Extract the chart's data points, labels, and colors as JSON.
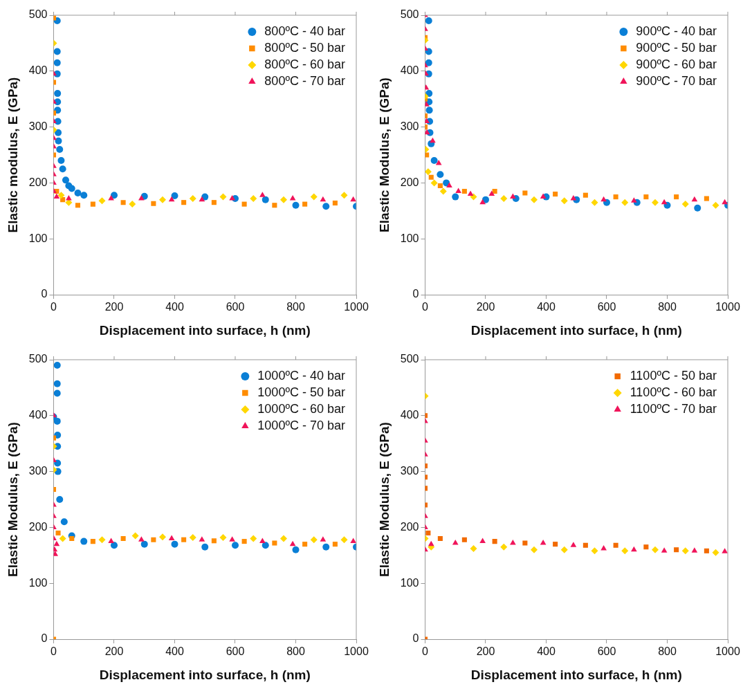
{
  "chart_data": [
    {
      "type": "scatter",
      "xlabel": "Displacement into surface, h (nm)",
      "ylabel": "Elastic modulus, E (GPa)",
      "xlim": [
        0,
        1000
      ],
      "ylim": [
        0,
        500
      ],
      "xticks": [
        0,
        200,
        400,
        600,
        800,
        1000
      ],
      "yticks": [
        0,
        100,
        200,
        300,
        400,
        500
      ],
      "legend": "top right",
      "series": [
        {
          "name": "800ºC - 40 bar",
          "color": "#0a7fd6",
          "marker": "circle",
          "x": [
            12,
            12,
            12,
            12,
            13,
            13,
            13,
            14,
            15,
            16,
            20,
            25,
            30,
            40,
            50,
            60,
            80,
            100,
            200,
            300,
            400,
            500,
            600,
            700,
            800,
            900,
            1000
          ],
          "values": [
            490,
            435,
            415,
            395,
            360,
            345,
            330,
            310,
            290,
            275,
            260,
            240,
            225,
            205,
            195,
            190,
            182,
            178,
            178,
            176,
            177,
            175,
            172,
            170,
            160,
            158,
            158
          ]
        },
        {
          "name": "800ºC - 50 bar",
          "color": "#ff8c00",
          "marker": "square",
          "x": [
            0,
            0,
            0,
            0,
            10,
            30,
            80,
            130,
            230,
            330,
            430,
            530,
            630,
            730,
            830,
            930
          ],
          "values": [
            495,
            380,
            325,
            250,
            185,
            170,
            160,
            162,
            165,
            163,
            165,
            165,
            162,
            160,
            162,
            164
          ]
        },
        {
          "name": "800ºC - 60 bar",
          "color": "#ffd700",
          "marker": "diamond",
          "x": [
            0,
            0,
            25,
            50,
            160,
            260,
            360,
            460,
            560,
            660,
            760,
            860,
            960
          ],
          "values": [
            450,
            295,
            178,
            165,
            168,
            162,
            170,
            172,
            175,
            172,
            170,
            175,
            178
          ]
        },
        {
          "name": "800ºC - 70 bar",
          "color": "#f0145a",
          "marker": "triangle",
          "x": [
            0,
            0,
            0,
            0,
            0,
            0,
            0,
            0,
            0,
            10,
            50,
            190,
            290,
            390,
            490,
            590,
            690,
            790,
            890,
            990
          ],
          "values": [
            395,
            345,
            310,
            280,
            265,
            230,
            215,
            200,
            185,
            175,
            172,
            172,
            172,
            170,
            170,
            172,
            178,
            172,
            170,
            170
          ]
        }
      ]
    },
    {
      "type": "scatter",
      "xlabel": "Displacement into surface, h (nm)",
      "ylabel": "Elastic Modulus, E (GPa)",
      "xlim": [
        0,
        1000
      ],
      "ylim": [
        0,
        500
      ],
      "xticks": [
        0,
        200,
        400,
        600,
        800,
        1000
      ],
      "yticks": [
        0,
        100,
        200,
        300,
        400,
        500
      ],
      "legend": "top right",
      "series": [
        {
          "name": "900ºC - 40 bar",
          "color": "#0a7fd6",
          "marker": "circle",
          "x": [
            12,
            12,
            12,
            12,
            13,
            13,
            14,
            15,
            16,
            20,
            30,
            50,
            70,
            100,
            200,
            300,
            400,
            500,
            600,
            700,
            800,
            900,
            1000
          ],
          "values": [
            490,
            435,
            415,
            395,
            360,
            345,
            330,
            310,
            290,
            270,
            240,
            215,
            200,
            175,
            170,
            172,
            175,
            170,
            165,
            165,
            160,
            155,
            160
          ]
        },
        {
          "name": "900ºC - 50 bar",
          "color": "#ff8c00",
          "marker": "square",
          "x": [
            0,
            0,
            0,
            0,
            5,
            20,
            50,
            130,
            230,
            330,
            430,
            530,
            630,
            730,
            830,
            930
          ],
          "values": [
            460,
            350,
            320,
            300,
            250,
            210,
            195,
            185,
            185,
            182,
            180,
            178,
            175,
            175,
            175,
            172
          ]
        },
        {
          "name": "900ºC - 60 bar",
          "color": "#ffd700",
          "marker": "diamond",
          "x": [
            0,
            0,
            2,
            10,
            30,
            60,
            160,
            260,
            360,
            460,
            560,
            660,
            760,
            860,
            960
          ],
          "values": [
            455,
            355,
            260,
            220,
            200,
            185,
            175,
            172,
            170,
            168,
            165,
            165,
            165,
            162,
            160
          ]
        },
        {
          "name": "900ºC - 70 bar",
          "color": "#f0145a",
          "marker": "triangle",
          "x": [
            0,
            0,
            0,
            0,
            2,
            3,
            4,
            5,
            6,
            25,
            45,
            80,
            110,
            150,
            190,
            220,
            290,
            390,
            490,
            590,
            690,
            790,
            890,
            990
          ],
          "values": [
            500,
            475,
            440,
            410,
            395,
            370,
            340,
            310,
            290,
            275,
            235,
            195,
            185,
            180,
            165,
            180,
            175,
            175,
            172,
            170,
            168,
            165,
            170,
            165
          ]
        }
      ]
    },
    {
      "type": "scatter",
      "xlabel": "Displacement into surface, h (nm)",
      "ylabel": "Elastic Modulus, E (GPa)",
      "xlim": [
        0,
        1000
      ],
      "ylim": [
        0,
        500
      ],
      "xticks": [
        0,
        200,
        400,
        600,
        800,
        1000
      ],
      "yticks": [
        0,
        100,
        200,
        300,
        400,
        500
      ],
      "legend": "top right",
      "series": [
        {
          "name": "1000ºC - 40 bar",
          "color": "#0a7fd6",
          "marker": "circle",
          "x": [
            0,
            12,
            12,
            12,
            12,
            13,
            13,
            13,
            14,
            20,
            35,
            60,
            100,
            200,
            300,
            400,
            500,
            600,
            700,
            800,
            900,
            1000
          ],
          "values": [
            398,
            490,
            457,
            440,
            390,
            365,
            345,
            315,
            300,
            250,
            210,
            185,
            175,
            168,
            170,
            170,
            165,
            168,
            168,
            160,
            165,
            165
          ]
        },
        {
          "name": "1000ºC - 50 bar",
          "color": "#ff8c00",
          "marker": "square",
          "x": [
            0,
            0,
            0,
            15,
            60,
            130,
            230,
            330,
            430,
            530,
            630,
            730,
            830,
            930
          ],
          "values": [
            360,
            268,
            0,
            190,
            180,
            175,
            180,
            178,
            178,
            176,
            175,
            172,
            170,
            170
          ]
        },
        {
          "name": "1000ºC - 60 bar",
          "color": "#ffd700",
          "marker": "diamond",
          "x": [
            0,
            0,
            30,
            160,
            270,
            360,
            460,
            560,
            660,
            760,
            860,
            960
          ],
          "values": [
            345,
            303,
            180,
            178,
            185,
            183,
            182,
            182,
            180,
            180,
            178,
            178
          ]
        },
        {
          "name": "1000ºC - 70 bar",
          "color": "#f0145a",
          "marker": "triangle",
          "x": [
            0,
            0,
            0,
            0,
            0,
            0,
            3,
            5,
            10,
            190,
            290,
            390,
            490,
            590,
            690,
            790,
            890,
            990
          ],
          "values": [
            400,
            320,
            240,
            220,
            200,
            180,
            160,
            152,
            170,
            175,
            178,
            180,
            178,
            178,
            175,
            170,
            178,
            175
          ]
        }
      ]
    },
    {
      "type": "scatter",
      "xlabel": "Displacement into surface, h (nm)",
      "ylabel": "Elastic Modulus, E (GPa)",
      "xlim": [
        0,
        1000
      ],
      "ylim": [
        0,
        500
      ],
      "xticks": [
        0,
        200,
        400,
        600,
        800,
        1000
      ],
      "yticks": [
        0,
        100,
        200,
        300,
        400,
        500
      ],
      "legend": "top right",
      "series": [
        {
          "name": "1100ºC - 50 bar",
          "color": "#f26a00",
          "marker": "square",
          "x": [
            0,
            0,
            0,
            0,
            0,
            0,
            10,
            50,
            130,
            230,
            330,
            430,
            530,
            630,
            730,
            830,
            930
          ],
          "values": [
            400,
            310,
            290,
            270,
            240,
            0,
            190,
            180,
            178,
            175,
            172,
            170,
            168,
            168,
            165,
            160,
            158
          ]
        },
        {
          "name": "1100ºC - 60 bar",
          "color": "#ffd700",
          "marker": "diamond",
          "x": [
            0,
            0,
            20,
            160,
            260,
            360,
            460,
            560,
            660,
            760,
            860,
            960
          ],
          "values": [
            435,
            180,
            165,
            162,
            165,
            160,
            160,
            158,
            158,
            160,
            158,
            155
          ]
        },
        {
          "name": "1100ºC - 70 bar",
          "color": "#f0145a",
          "marker": "triangle",
          "x": [
            0,
            0,
            0,
            0,
            0,
            0,
            20,
            100,
            190,
            290,
            390,
            490,
            590,
            690,
            790,
            890,
            990
          ],
          "values": [
            390,
            355,
            330,
            220,
            200,
            160,
            170,
            172,
            175,
            172,
            172,
            168,
            162,
            160,
            158,
            158,
            157
          ]
        }
      ]
    }
  ]
}
